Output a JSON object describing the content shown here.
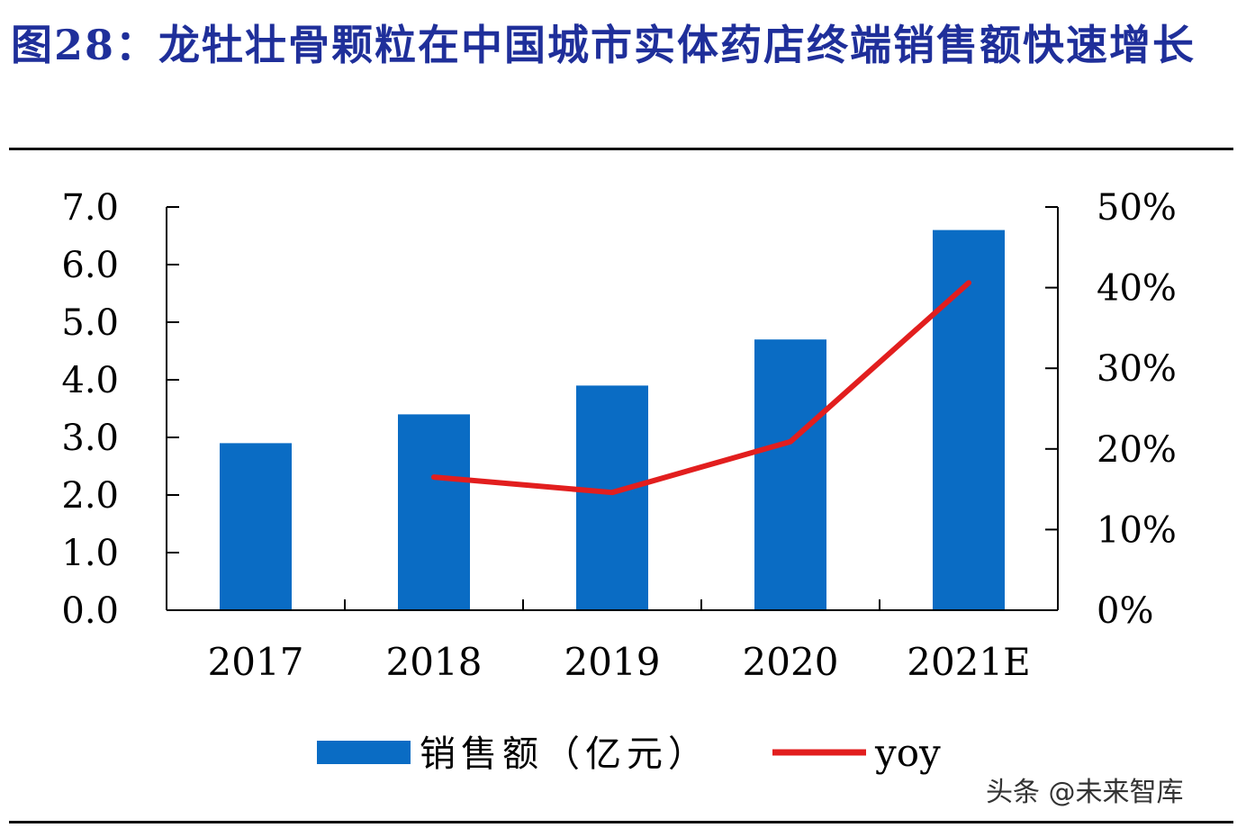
{
  "title": "图28：龙牡壮骨颗粒在中国城市实体药店终端销售额快速增长",
  "watermark": "头条 @未来智库",
  "colors": {
    "bar": "#0a6cc4",
    "line": "#e21e1e",
    "title": "#1f2f9a"
  },
  "chart_data": {
    "type": "bar",
    "categories": [
      "2017",
      "2018",
      "2019",
      "2020",
      "2021E"
    ],
    "series": [
      {
        "name": "销售额（亿元）",
        "type": "bar",
        "axis": "left",
        "values": [
          2.9,
          3.4,
          3.9,
          4.7,
          6.6
        ]
      },
      {
        "name": "yoy",
        "type": "line",
        "axis": "right",
        "values": [
          null,
          0.165,
          0.146,
          0.209,
          0.406
        ]
      }
    ],
    "left_axis": {
      "ylim": [
        0,
        7
      ],
      "ticks": [
        "0.0",
        "1.0",
        "2.0",
        "3.0",
        "4.0",
        "5.0",
        "6.0",
        "7.0"
      ]
    },
    "right_axis": {
      "ylim": [
        0,
        0.5
      ],
      "ticks": [
        "0%",
        "10%",
        "20%",
        "30%",
        "40%",
        "50%"
      ]
    },
    "legend_position": "bottom"
  }
}
